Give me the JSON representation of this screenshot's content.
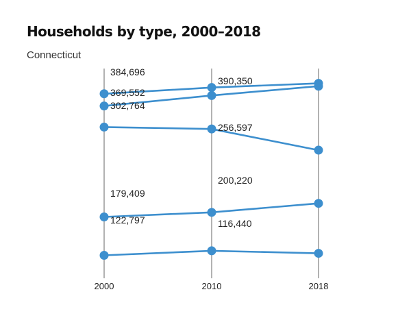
{
  "chart_data": {
    "type": "line",
    "title": "Households by type, 2000–2018",
    "subtitle": "Connecticut",
    "x": [
      "2000",
      "2010",
      "2018"
    ],
    "series": [
      {
        "values": [
          369552,
          382000,
          390350
        ]
      },
      {
        "values": [
          345000,
          366000,
          384696
        ]
      },
      {
        "values": [
          302764,
          299000,
          256597
        ]
      },
      {
        "values": [
          122797,
          132000,
          150000
        ]
      },
      {
        "values": [
          46000,
          55000,
          50000
        ]
      }
    ],
    "data_labels": [
      {
        "text": "384,696",
        "x": "2000",
        "y": 413000
      },
      {
        "text": "369,552",
        "x": "2000",
        "y": 372000
      },
      {
        "text": "302,764",
        "x": "2000",
        "y": 346000
      },
      {
        "text": "179,409",
        "x": "2000",
        "y": 170000
      },
      {
        "text": "122,797",
        "x": "2000",
        "y": 117000
      },
      {
        "text": "390,350",
        "x": "2010",
        "y": 395000
      },
      {
        "text": "256,597",
        "x": "2010",
        "y": 302000
      },
      {
        "text": "200,220",
        "x": "2010",
        "y": 196000
      },
      {
        "text": "116,440",
        "x": "2010",
        "y": 110000
      }
    ],
    "ylim": [
      0,
      420000
    ],
    "colors": {
      "line": "#3d8fce",
      "grid": "#999999"
    },
    "grid": "vertical"
  }
}
